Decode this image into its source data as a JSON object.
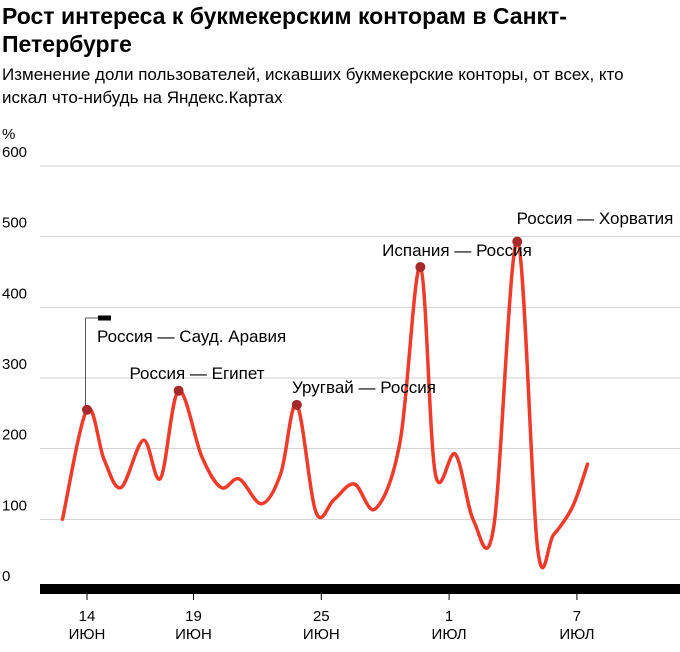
{
  "chart_data": {
    "type": "line",
    "title": "Рост интереса к букмекерским конторам в Санкт-Петербурге",
    "subtitle": "Изменение доли пользователей, искавших букмекерские конторы, от всех, кто искал что-нибудь на Яндекс.Картах",
    "ylabel": "%",
    "ylim": [
      0,
      600
    ],
    "yticks": [
      "0",
      "100",
      "200",
      "300",
      "400",
      "500",
      "600"
    ],
    "grid": true,
    "x_ticks": [
      {
        "day": 0,
        "line1": "14",
        "line2": "ИЮН"
      },
      {
        "day": 5,
        "line1": "19",
        "line2": "ИЮН"
      },
      {
        "day": 11,
        "line1": "25",
        "line2": "ИЮН"
      },
      {
        "day": 17,
        "line1": "1",
        "line2": "ИЮЛ"
      },
      {
        "day": 23,
        "line1": "7",
        "line2": "ИЮЛ"
      }
    ],
    "series": [
      {
        "color": "#f03a2a",
        "points": [
          [
            -1.15,
            100
          ],
          [
            0.0,
            255
          ],
          [
            0.8,
            185
          ],
          [
            1.6,
            145
          ],
          [
            2.65,
            212
          ],
          [
            3.45,
            158
          ],
          [
            4.3,
            282
          ],
          [
            5.4,
            188
          ],
          [
            6.3,
            145
          ],
          [
            7.15,
            157
          ],
          [
            8.2,
            122
          ],
          [
            9.1,
            165
          ],
          [
            9.85,
            262
          ],
          [
            10.75,
            110
          ],
          [
            11.6,
            128
          ],
          [
            12.55,
            150
          ],
          [
            13.55,
            115
          ],
          [
            14.7,
            210
          ],
          [
            15.65,
            457
          ],
          [
            16.35,
            165
          ],
          [
            17.3,
            192
          ],
          [
            18.15,
            98
          ],
          [
            19.1,
            90
          ],
          [
            20.2,
            493
          ],
          [
            21.15,
            60
          ],
          [
            21.9,
            78
          ],
          [
            22.8,
            118
          ],
          [
            23.5,
            178
          ]
        ]
      }
    ],
    "annotations": [
      {
        "label": "Россия — Сауд. Аравия",
        "day": 0.0,
        "value": 255
      },
      {
        "label": "Россия — Египет",
        "day": 4.3,
        "value": 282
      },
      {
        "label": "Уругвай — Россия",
        "day": 9.85,
        "value": 262
      },
      {
        "label": "Испания — Россия",
        "day": 15.65,
        "value": 457
      },
      {
        "label": "Россия — Хорватия",
        "day": 20.2,
        "value": 493
      }
    ]
  }
}
